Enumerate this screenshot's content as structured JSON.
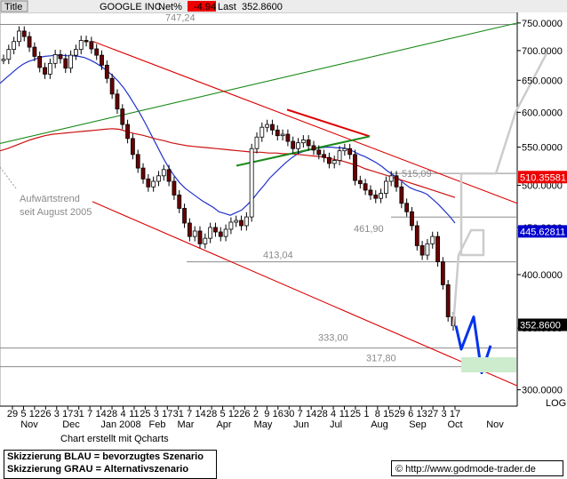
{
  "header": {
    "title_button": "Title",
    "instrument": "GOOGLE INC",
    "net_label": "Net%",
    "net_value": "-4.94",
    "last_label": "Last",
    "last_value": "352.8600"
  },
  "chart_data": {
    "type": "line",
    "title": "GOOGLE INC",
    "y_scale": "log",
    "ylim": [
      288,
      770
    ],
    "y_ticks": [
      300,
      350,
      400,
      450,
      500,
      550,
      600,
      650,
      700,
      750
    ],
    "y_tick_labels": [
      "300.0000",
      "350.0000",
      "400.0000",
      "450.0000",
      "500.0000",
      "550.0000",
      "600.0000",
      "650.0000",
      "700.0000",
      "750.0000"
    ],
    "y_axis_mode": "LOG",
    "x_tick_labels": [
      "29",
      "5",
      "12",
      "26",
      "3",
      "17",
      "31",
      "7",
      "14",
      "28",
      "4",
      "11",
      "25",
      "3",
      "17",
      "31",
      "7",
      "14",
      "28",
      "5",
      "12",
      "26",
      "2",
      "9",
      "16",
      "30",
      "7",
      "14",
      "28",
      "4",
      "11",
      "25",
      "1",
      "8",
      "15",
      "29",
      "6",
      "13",
      "27",
      "3",
      "17"
    ],
    "x_month_labels": [
      "Nov",
      "Dec",
      "Jan 2008",
      "Feb",
      "Mar",
      "Apr",
      "May",
      "Jun",
      "Jul",
      "Aug",
      "Sep",
      "Oct",
      "Nov"
    ],
    "price_series": {
      "name": "GOOGLE INC",
      "values": [
        685,
        702,
        716,
        735,
        725,
        706,
        690,
        671,
        660,
        678,
        693,
        686,
        670,
        692,
        702,
        718,
        716,
        703,
        692,
        675,
        653,
        628,
        605,
        582,
        562,
        540,
        522,
        508,
        498,
        505,
        512,
        520,
        505,
        488,
        472,
        455,
        440,
        446,
        432,
        438,
        450,
        445,
        440,
        448,
        456,
        458,
        452,
        462,
        548,
        564,
        578,
        582,
        574,
        566,
        568,
        558,
        548,
        556,
        560,
        552,
        546,
        540,
        536,
        528,
        532,
        545,
        548,
        540,
        506,
        502,
        494,
        488,
        484,
        490,
        505,
        512,
        498,
        478,
        468,
        452,
        430,
        420,
        432,
        440,
        413,
        390,
        360,
        352
      ],
      "color": "#000000"
    },
    "moving_averages": [
      {
        "name": "",
        "color": "#2233cc",
        "values": [
          645,
          653,
          661,
          669,
          676,
          681,
          684,
          688,
          690,
          691,
          692,
          692,
          691,
          691,
          690,
          688,
          684,
          679,
          673,
          666,
          658,
          649,
          638,
          625,
          611,
          597,
          582,
          566,
          551,
          536,
          523,
          512,
          503,
          496,
          491,
          486,
          481,
          477,
          473,
          468,
          466,
          464,
          467,
          470,
          476,
          483,
          492,
          500,
          509,
          516,
          523,
          530,
          536,
          541,
          544,
          546,
          548,
          549,
          550,
          550,
          549,
          549,
          547,
          544,
          540,
          537,
          533,
          529,
          524,
          518,
          513,
          508,
          502,
          497,
          494,
          492,
          489,
          483,
          477,
          470,
          463,
          455
        ]
      },
      {
        "name": "",
        "color": "#cc1111",
        "values": [
          545,
          548,
          552,
          556,
          560,
          563,
          566,
          568,
          569,
          570,
          571,
          572,
          573,
          574,
          575,
          576,
          575,
          572,
          569,
          567,
          564,
          561,
          559,
          556,
          554,
          552,
          551,
          550,
          549,
          548,
          547,
          546,
          545,
          544,
          543,
          543,
          542,
          542,
          541,
          541,
          540,
          539,
          538,
          537,
          535,
          533,
          531,
          528,
          525,
          521,
          518,
          515,
          512,
          509,
          506,
          503,
          500,
          497,
          494,
          491,
          488,
          485
        ]
      }
    ],
    "horizontal_levels": [
      747.24,
      515.09,
      461.9,
      413.04,
      333.0,
      317.8
    ],
    "level_labels": [
      "747,24",
      "515,09",
      "461,90",
      "413,04",
      "333,00",
      "317,80"
    ],
    "markers": [
      {
        "label": "510.35581",
        "color": "#ee0000"
      },
      {
        "label": "445.62811",
        "color": "#0000cc"
      },
      {
        "label": "352.8600",
        "color": "#000000"
      }
    ],
    "trendlines": [
      {
        "color": "#1a8a1a",
        "kind": "uptrend",
        "from": 555,
        "to": 750
      },
      {
        "color": "#dd0000",
        "kind": "downtrend-upper",
        "from": 716,
        "to": 478
      },
      {
        "color": "#dd0000",
        "kind": "downtrend-lower",
        "from": 480,
        "to": 303
      },
      {
        "color": "#dd0000",
        "kind": "triangle-upper",
        "from": 604,
        "to": 565
      },
      {
        "color": "#1a8a1a",
        "kind": "triangle-lower",
        "from": 525,
        "to": 565
      }
    ],
    "scenario_paths": [
      {
        "name": "Skizzierung BLAU",
        "color": "#0033ee",
        "values": [
          352,
          332,
          360,
          313,
          335
        ]
      },
      {
        "name": "Skizzierung GRAU",
        "color": "#cccccc",
        "values": [
          352,
          420,
          447,
          447,
          420,
          420,
          515,
          515,
          600,
          695
        ]
      }
    ],
    "annotations": [
      "Aufwärtstrend",
      "seit August 2005"
    ]
  },
  "footer": {
    "credit": "Chart erstellt mit Qcharts",
    "legend_blue": "Skizzierung BLAU = bevorzugtes Szenario",
    "legend_grey": "Skizzierung GRAU = Alternativszenario",
    "url": "http://www.godmode-trader.de",
    "copyright_icon": "copyright-icon"
  }
}
